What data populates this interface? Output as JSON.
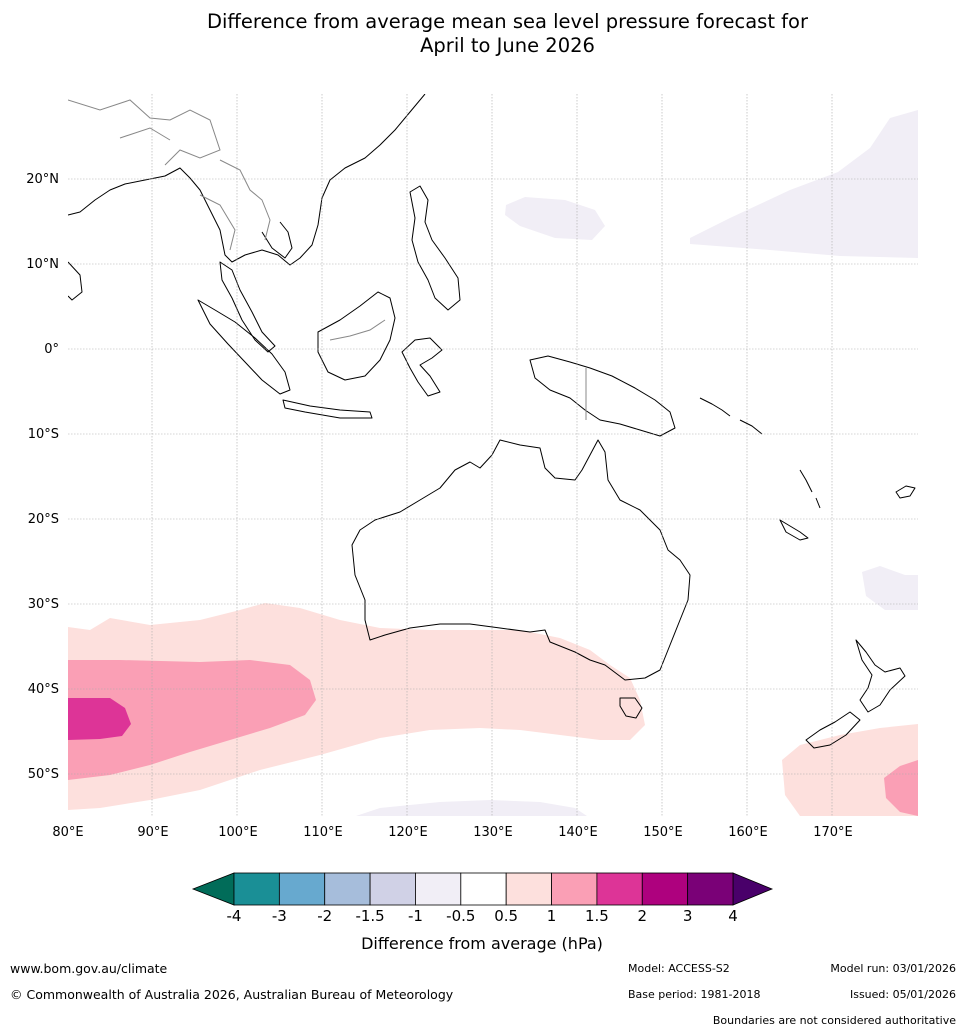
{
  "title": {
    "line1": "Difference from average mean sea level pressure forecast for",
    "line2": "April to June 2026"
  },
  "map": {
    "lon_labels": [
      "80°E",
      "90°E",
      "100°E",
      "110°E",
      "120°E",
      "130°E",
      "140°E",
      "150°E",
      "160°E",
      "170°E"
    ],
    "lat_labels": [
      "20°N",
      "10°N",
      "0°",
      "10°S",
      "20°S",
      "30°S",
      "40°S",
      "50°S"
    ]
  },
  "legend": {
    "ticks": [
      "-4",
      "-3",
      "-2",
      "-1.5",
      "-1",
      "-0.5",
      "0.5",
      "1",
      "1.5",
      "2",
      "3",
      "4"
    ],
    "colors": [
      "#1a8f96",
      "#67a9cf",
      "#a6bddb",
      "#d0d1e6",
      "#f1eef6",
      "#ffffff",
      "#fde0dd",
      "#fa9fb5",
      "#dd3497",
      "#ae017e",
      "#7a0177"
    ],
    "under_color": "#016c59",
    "over_color": "#49006a",
    "label": "Difference from average (hPa)"
  },
  "footer": {
    "url": "www.bom.gov.au/climate",
    "copyright": "© Commonwealth of Australia 2026, Australian Bureau of Meteorology",
    "model": "Model: ACCESS-S2",
    "base_period": "Base period: 1981-2018",
    "model_run": "Model run: 03/01/2026",
    "issued": "Issued: 05/01/2026",
    "disclaimer": "Boundaries are not considered authoritative"
  }
}
